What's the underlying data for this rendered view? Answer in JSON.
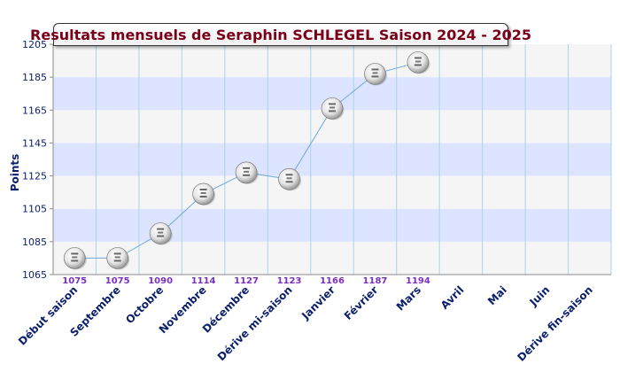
{
  "chart_data": {
    "type": "line",
    "title": "Resultats mensuels de Seraphin SCHLEGEL Saison 2024 - 2025",
    "ylabel": "Points",
    "xlabel": "",
    "ylim": [
      1065,
      1205
    ],
    "yticks": [
      1065,
      1085,
      1105,
      1125,
      1145,
      1165,
      1185,
      1205
    ],
    "categories": [
      "Début saison",
      "Septembre",
      "Octobre",
      "Novembre",
      "Décembre",
      "Dérive mi-saison",
      "Janvier",
      "Février",
      "Mars",
      "Avril",
      "Mai",
      "Juin",
      "Dérive fin-saison"
    ],
    "series": [
      {
        "values": [
          1075,
          1075,
          1090,
          1114,
          1127,
          1123,
          1166,
          1187,
          1194,
          null,
          null,
          null,
          null
        ]
      }
    ],
    "value_labels": [
      "1075",
      "1075",
      "1090",
      "1114",
      "1127",
      "1123",
      "1166",
      "1187",
      "1194"
    ],
    "grid": true,
    "band_color": "#dde4ff",
    "alt_band_color": "#f5f5f5",
    "line_color": "#6fa8dc",
    "title_color": "#7a0019",
    "axis_label_color": "#0b1f6b",
    "value_label_color": "#7b2fbe",
    "marker_icon": "ping-pong-ball-icon"
  }
}
